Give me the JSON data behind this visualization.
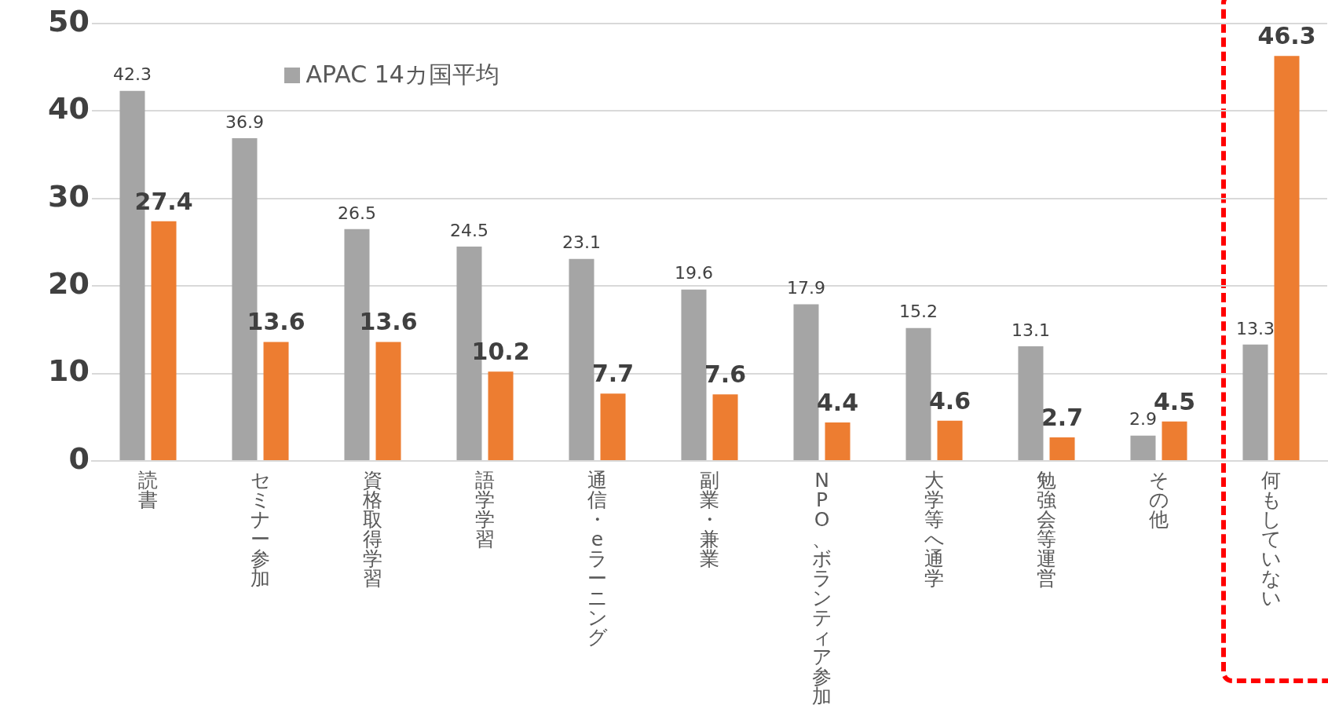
{
  "chart_data": {
    "type": "bar",
    "categories": [
      "読書",
      "セミナー参加",
      "資格取得学習",
      "語学学習",
      "通信・eラーニング",
      "副業・兼業",
      "NPO、ボランティア参加",
      "大学等へ通学",
      "勉強会等運営",
      "その他",
      "何もしていない"
    ],
    "series": [
      {
        "name": "APAC 14カ国平均",
        "color": "#a5a5a5",
        "values": [
          42.3,
          36.9,
          26.5,
          24.5,
          23.1,
          19.6,
          17.9,
          15.2,
          13.1,
          2.9,
          13.3
        ]
      },
      {
        "color": "#ed7d31",
        "values": [
          27.4,
          13.6,
          13.6,
          10.2,
          7.7,
          7.6,
          4.4,
          4.6,
          2.7,
          4.5,
          46.3
        ]
      }
    ],
    "ylim": [
      0,
      50
    ],
    "yticks": [
      0,
      10,
      20,
      30,
      40,
      50
    ],
    "grid": "y",
    "legend": "top left",
    "data_labels": true
  }
}
